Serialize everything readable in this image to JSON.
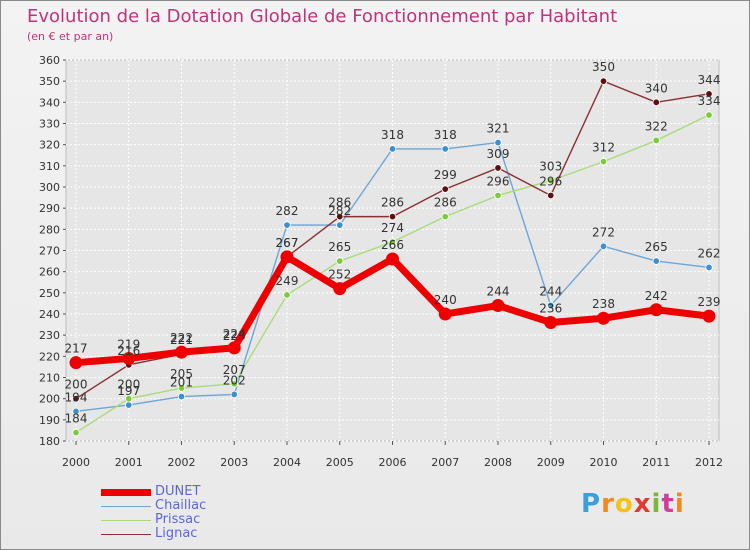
{
  "title": "Evolution de la Dotation Globale de Fonctionnement par Habitant",
  "subtitle": "(en € et par an)",
  "brand": {
    "letters": [
      "P",
      "r",
      "o",
      "x",
      "i",
      "t",
      "i"
    ],
    "colors": [
      "#3aa0d8",
      "#f08a1c",
      "#f5c218",
      "#e23b2e",
      "#7ab83a",
      "#d23c9a",
      "#f08a1c"
    ]
  },
  "chart_data": {
    "type": "line",
    "title": "Evolution de la Dotation Globale de Fonctionnement par Habitant",
    "subtitle": "(en € et par an)",
    "xlabel": "",
    "ylabel": "",
    "ylim": [
      180,
      360
    ],
    "ytick_step": 10,
    "grid": true,
    "legend_position": "bottom-left",
    "x": [
      "2000",
      "2001",
      "2002",
      "2003",
      "2004",
      "2005",
      "2006",
      "2007",
      "2008",
      "2009",
      "2010",
      "2011",
      "2012"
    ],
    "series": [
      {
        "name": "DUNET",
        "color": "#ee0000",
        "marker_color": "#ee0000",
        "values": [
          217,
          219,
          222,
          224,
          267,
          252,
          266,
          240,
          244,
          236,
          238,
          242,
          239
        ]
      },
      {
        "name": "Chaillac",
        "color": "#6da6d6",
        "marker_color": "#3d8fd0",
        "values": [
          194,
          197,
          201,
          202,
          282,
          282,
          318,
          318,
          321,
          244,
          272,
          265,
          262
        ]
      },
      {
        "name": "Prissac",
        "color": "#a8dc78",
        "marker_color": "#7ccc3a",
        "values": [
          184,
          200,
          205,
          207,
          249,
          265,
          274,
          286,
          296,
          303,
          312,
          322,
          334
        ]
      },
      {
        "name": "Lignac",
        "color": "#8a3030",
        "marker_color": "#5c1010",
        "values": [
          200,
          216,
          221,
          223,
          267,
          286,
          286,
          299,
          309,
          296,
          350,
          340,
          344
        ]
      }
    ]
  }
}
